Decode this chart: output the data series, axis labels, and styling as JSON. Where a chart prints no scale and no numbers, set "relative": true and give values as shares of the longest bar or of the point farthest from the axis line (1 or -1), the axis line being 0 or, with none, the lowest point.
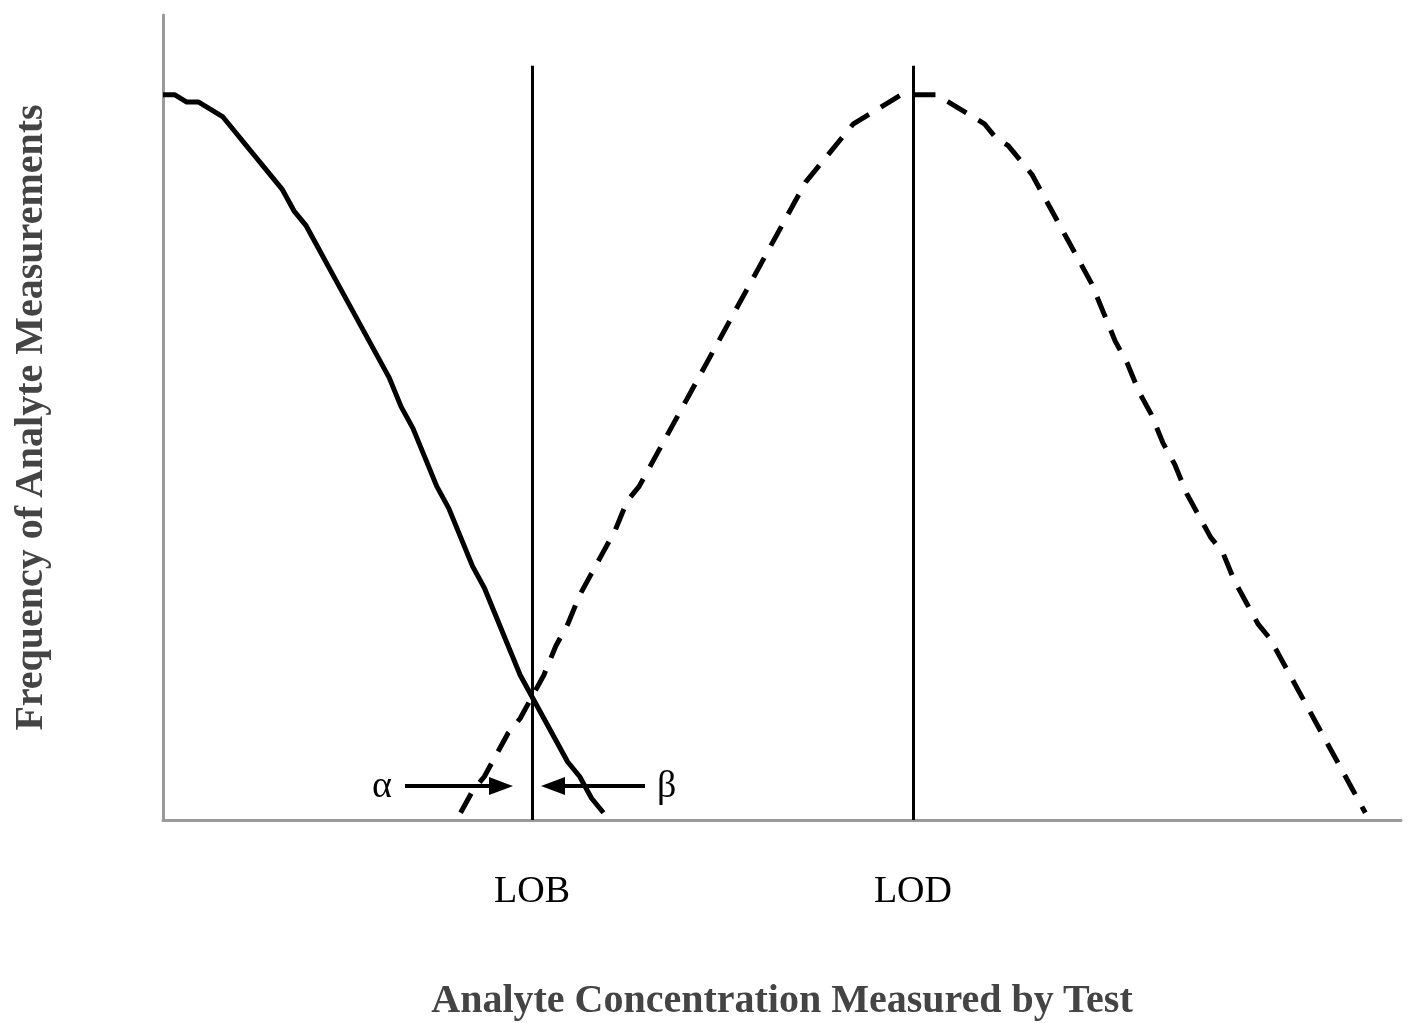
{
  "chart_data": {
    "type": "line",
    "relative": true,
    "xlabel": "Analyte Concentration Measured by Test",
    "ylabel": "Frequency of Analyte Measurements",
    "categories": [
      null,
      null,
      null,
      null,
      null,
      null,
      null,
      null,
      null,
      null,
      null,
      null,
      null,
      null,
      null,
      null,
      null,
      null,
      null,
      null,
      null,
      null,
      null,
      null,
      null,
      null,
      null,
      null,
      null,
      null,
      null,
      "LOB",
      null,
      null,
      null,
      null,
      null,
      null,
      null,
      null,
      null,
      null,
      null,
      null,
      null,
      null,
      null,
      null,
      null,
      null,
      null,
      null,
      null,
      null,
      null,
      null,
      null,
      null,
      null,
      null,
      null,
      null,
      null,
      "LOD",
      null,
      null,
      null,
      null,
      null,
      null,
      null,
      null,
      null,
      null,
      null,
      null,
      null,
      null,
      null,
      null,
      null,
      null,
      null,
      null,
      null,
      null,
      null,
      null,
      null,
      null,
      null,
      null,
      null,
      null,
      null,
      null,
      null,
      null,
      null,
      null,
      null,
      null,
      null,
      null,
      null
    ],
    "series": [
      {
        "color": "#000000",
        "line_style": "solid",
        "values": [
          1,
          1,
          0.99,
          0.99,
          0.98,
          0.97,
          0.95,
          0.93,
          0.91,
          0.89,
          0.87,
          0.84,
          0.82,
          0.79,
          0.76,
          0.73,
          0.7,
          0.67,
          0.64,
          0.61,
          0.57,
          0.54,
          0.5,
          0.46,
          0.43,
          0.39,
          0.35,
          0.32,
          0.28,
          0.24,
          0.2,
          0.17,
          0.14,
          0.11,
          0.08,
          0.06,
          0.03,
          0.01,
          null,
          null,
          null,
          null,
          null,
          null,
          null,
          null,
          null,
          null,
          null,
          null,
          null,
          null,
          null,
          null,
          null,
          null,
          null,
          null,
          null,
          null,
          null,
          null,
          null,
          null,
          null,
          null,
          null,
          null,
          null,
          null,
          null,
          null,
          null,
          null,
          null,
          null,
          null,
          null,
          null,
          null,
          null,
          null,
          null,
          null,
          null,
          null,
          null,
          null,
          null,
          null,
          null,
          null,
          null,
          null,
          null,
          null,
          null,
          null,
          null,
          null,
          null,
          null,
          null,
          null,
          null
        ]
      },
      {
        "color": "#000000",
        "line_style": "dashed",
        "values": [
          null,
          null,
          null,
          null,
          null,
          null,
          null,
          null,
          null,
          null,
          null,
          null,
          null,
          null,
          null,
          null,
          null,
          null,
          null,
          null,
          null,
          null,
          null,
          null,
          null,
          0.01,
          0.04,
          0.06,
          0.09,
          0.12,
          0.14,
          0.17,
          0.2,
          0.24,
          0.27,
          0.31,
          0.34,
          0.37,
          0.4,
          0.44,
          0.46,
          0.49,
          0.52,
          0.55,
          0.58,
          0.61,
          0.64,
          0.67,
          0.7,
          0.73,
          0.76,
          0.79,
          0.82,
          0.85,
          0.88,
          0.9,
          0.92,
          0.94,
          0.96,
          0.97,
          0.98,
          0.99,
          1,
          1,
          1,
          1,
          0.99,
          0.98,
          0.97,
          0.96,
          0.94,
          0.93,
          0.91,
          0.89,
          0.86,
          0.83,
          0.8,
          0.77,
          0.74,
          0.7,
          0.66,
          0.63,
          0.59,
          0.56,
          0.52,
          0.49,
          0.45,
          0.42,
          0.39,
          0.37,
          0.33,
          0.3,
          0.27,
          0.25,
          0.22,
          0.19,
          0.16,
          0.13,
          0.1,
          0.07,
          0.04,
          0.01,
          null,
          null,
          null
        ]
      }
    ],
    "ref_lines": [
      {
        "axis": "x",
        "value": "LOB",
        "color": "#000000"
      },
      {
        "axis": "x",
        "value": "LOD",
        "color": "#000000"
      }
    ],
    "annotations": [
      "α",
      "β"
    ],
    "grid": false,
    "tick_labels": "x"
  }
}
